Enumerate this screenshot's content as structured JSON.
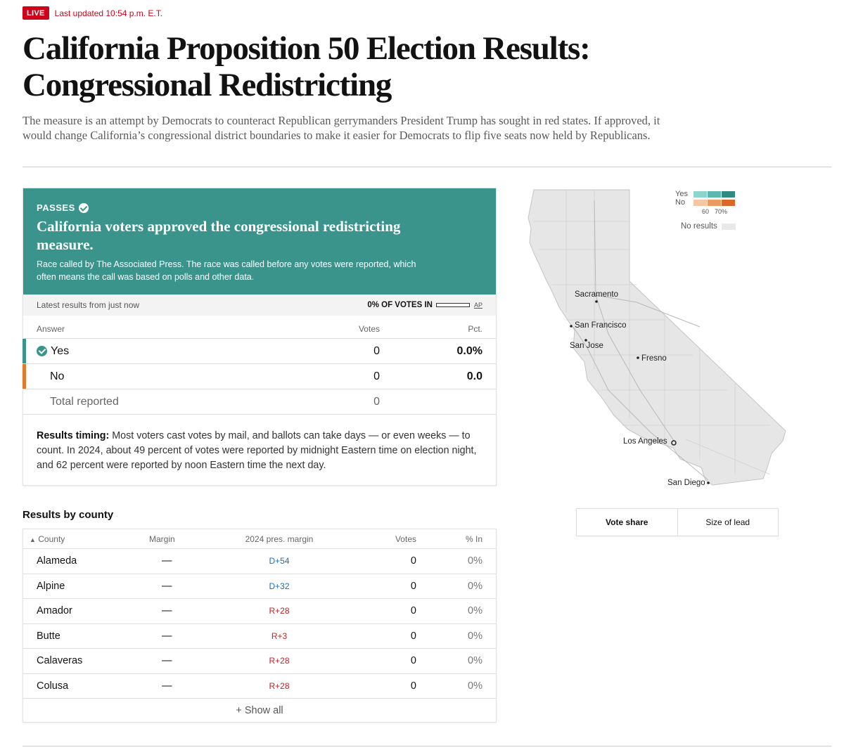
{
  "header": {
    "live_badge": "LIVE",
    "updated": "Last updated 10:54 p.m. E.T.",
    "title": "California Proposition 50 Election Results: Congressional Redistricting",
    "dek": "The measure is an attempt by Democrats to counteract Republican gerrymanders President Trump has sought in red states. If approved, it would change California’s congressional district boundaries to make it easier for Democrats to flip five seats now held by Republicans."
  },
  "colors": {
    "live_red": "#d0021b",
    "yes_teal": "#3a948c",
    "no_orange": "#e07a2c",
    "dem_blue": "#1a6fbd",
    "rep_red": "#c52127"
  },
  "result": {
    "status": "PASSES",
    "headline": "California voters approved the congressional redistricting measure.",
    "note": "Race called by The Associated Press. The race was called before any votes were reported, which often means the call was based on polls and other data.",
    "latest": "Latest results from just now",
    "votes_in": "0% OF VOTES IN",
    "votes_in_fraction": 0,
    "ap": "AP",
    "col_answer": "Answer",
    "col_votes": "Votes",
    "col_pct": "Pct.",
    "rows": [
      {
        "answer": "Yes",
        "votes": "0",
        "pct": "0.0%"
      },
      {
        "answer": "No",
        "votes": "0",
        "pct": "0.0"
      }
    ],
    "total_label": "Total reported",
    "total_votes": "0",
    "timing_label": "Results timing:",
    "timing_text": " Most voters cast votes by mail, and ballots can take days — or even weeks — to count. In 2024, about 49 percent of votes were reported by midnight Eastern time on election night, and 62 percent were reported by noon Eastern time the next day."
  },
  "county": {
    "heading": "Results by county",
    "sort_arrow": "▲",
    "cols": {
      "county": "County",
      "margin": "Margin",
      "pres": "2024 pres. margin",
      "votes": "Votes",
      "pct_in": "% In"
    },
    "rows": [
      {
        "name": "Alameda",
        "margin": "—",
        "pres": "D+54",
        "party": "D",
        "votes": "0",
        "pct_in": "0%"
      },
      {
        "name": "Alpine",
        "margin": "—",
        "pres": "D+32",
        "party": "D",
        "votes": "0",
        "pct_in": "0%"
      },
      {
        "name": "Amador",
        "margin": "—",
        "pres": "R+28",
        "party": "R",
        "votes": "0",
        "pct_in": "0%"
      },
      {
        "name": "Butte",
        "margin": "—",
        "pres": "R+3",
        "party": "R",
        "votes": "0",
        "pct_in": "0%"
      },
      {
        "name": "Calaveras",
        "margin": "—",
        "pres": "R+28",
        "party": "R",
        "votes": "0",
        "pct_in": "0%"
      },
      {
        "name": "Colusa",
        "margin": "—",
        "pres": "R+28",
        "party": "R",
        "votes": "0",
        "pct_in": "0%"
      }
    ],
    "show_all": "+ Show all"
  },
  "map": {
    "legend_yes": "Yes",
    "legend_no": "No",
    "tick_60": "60",
    "tick_70": "70%",
    "no_results": "No results",
    "yes_colors": [
      "#8fd4cc",
      "#5cb8ae",
      "#2f8a82"
    ],
    "no_colors": [
      "#f7c7a4",
      "#eb9a63",
      "#d9692a"
    ],
    "cities": [
      "Sacramento",
      "San Francisco",
      "San Jose",
      "Fresno",
      "Los Angeles",
      "San Diego"
    ],
    "toggle": [
      "Vote share",
      "Size of lead"
    ]
  }
}
